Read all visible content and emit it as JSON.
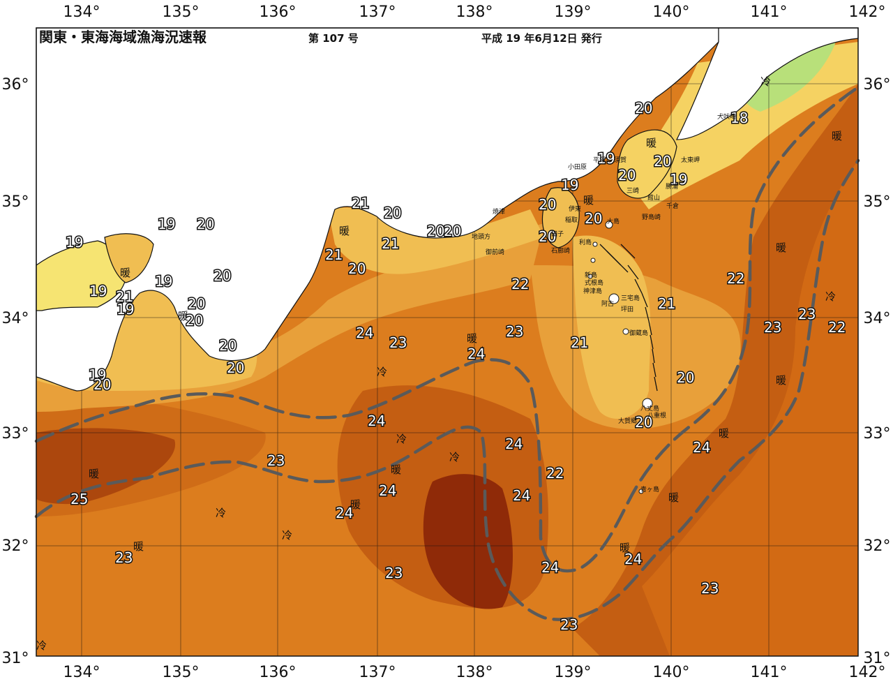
{
  "header": {
    "title": "関東・東海海域漁海況速報",
    "issue": "第 107 号",
    "date": "平成 19 年6月12日 発行"
  },
  "axes": {
    "lon_labels": [
      "134°",
      "135°",
      "136°",
      "137°",
      "138°",
      "139°",
      "140°",
      "141°",
      "142°"
    ],
    "lat_labels": [
      "36°",
      "35°",
      "34°",
      "33°",
      "32°",
      "31°"
    ]
  },
  "water_marks": {
    "warm": "暖",
    "cold": "冷"
  },
  "place_names": {
    "inubozaki": "犬吠埼",
    "taitozaki": "太東岬",
    "odawara": "小田原",
    "hiratsuka": "平塚",
    "kashiwazaki": "須賀",
    "tateyama": "館山",
    "nojimazaki": "野島崎",
    "katsuura": "勝浦",
    "misaki": "三崎",
    "ito": "伊東",
    "inatori": "稲取",
    "oshima": "大島",
    "toshima": "利島",
    "niijima": "新島",
    "shikinejima": "式根島",
    "kozushima": "神津島",
    "miyakejima": "三宅島",
    "ako": "阿古",
    "tsubota": "坪田",
    "mikurajima": "御蔵島",
    "hachijojima": "八丈島",
    "yaene": "八重根",
    "owatashi": "大賀郷",
    "aogashima": "青ヶ島",
    "yaizu": "焼津",
    "omaezaki": "御前崎",
    "chikyukata": "地頭方",
    "irozaki": "石廊崎",
    "tago": "田子",
    "chiba_chikura": "千倉"
  },
  "isotherm_labels": [
    "19",
    "20",
    "21",
    "22",
    "23",
    "24",
    "25",
    "18"
  ],
  "colors": {
    "sea_22": "#E8A03A",
    "sea_23": "#DC7D1E",
    "sea_24": "#C45E12",
    "sea_25": "#8F2A08",
    "sea_21": "#F0BE52",
    "sea_20": "#F5D262",
    "coast_19": "#F6E472",
    "land": "#ffffff",
    "kuroshio_axis": "#4a4a4a",
    "kuroshio_edge": "#5a5a5a"
  }
}
